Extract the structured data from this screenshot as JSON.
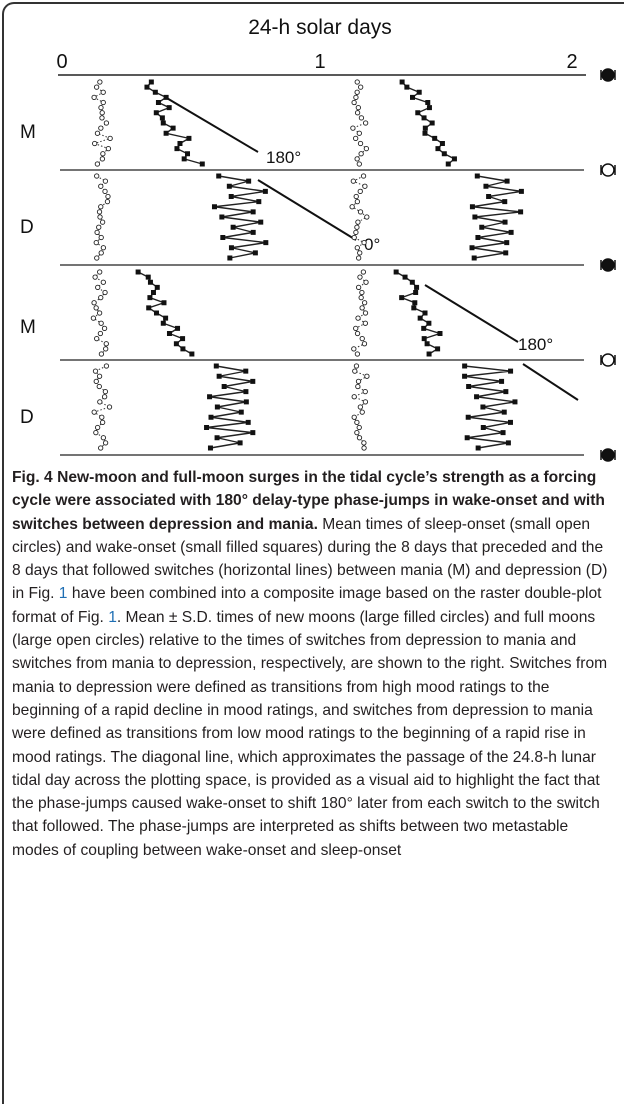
{
  "figure": {
    "axis_title": "24-h solar days",
    "ticks": [
      "0",
      "1",
      "2"
    ],
    "row_labels": [
      "M",
      "D",
      "M",
      "D"
    ],
    "annotations": [
      "180°",
      "0°",
      "180°"
    ]
  },
  "caption": {
    "label": "Fig. 4",
    "title": "New-moon and full-moon surges in the tidal cycle’s strength as a forcing cycle were associated with 180° delay-type phase-jumps in wake-onset and with switches between depression and mania.",
    "body": [
      "Mean times of sleep-onset (small open circles) and wake-onset (small filled squares) during the 8 days that preceded and the 8 days that followed switches (horizontal lines) between mania (M) and depression (D) in Fig. ",
      "1",
      " have been combined into a composite image based on the raster double-plot format of Fig. ",
      "1",
      ". Mean ± S.D. times of new moons (large filled circles) and full moons (large open circles) relative to the times of switches from depression to mania and switches from mania to depression, respectively, are shown to the right. Switches from mania to depression were defined as transitions from high mood ratings to the beginning of a rapid decline in mood ratings, and switches from depression to mania were defined as transitions from low mood ratings to the beginning of a rapid rise in mood ratings. The diagonal line, which approximates the passage of the 24.8-h lunar tidal day across the plotting space, is provided as a visual aid to highlight the fact that the phase-jumps caused wake-onset to shift 180° later from each switch to the switch that followed. The phase-jumps are interpreted as shifts between two metastable modes of coupling between wake-onset and sleep-onset"
    ]
  }
}
